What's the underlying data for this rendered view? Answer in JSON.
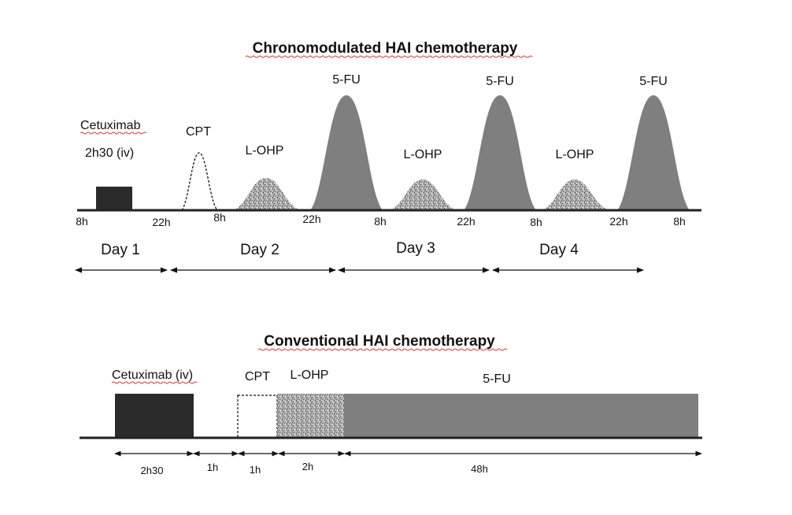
{
  "chrono": {
    "title": "Chronomodulated HAI chemotherapy",
    "cetuximab_label": "Cetuximab",
    "cetuximab_dose": "2h30 (iv)",
    "cpt_label": "CPT",
    "lohp_labels": [
      "L-OHP",
      "L-OHP",
      "L-OHP"
    ],
    "fu_labels": [
      "5-FU",
      "5-FU",
      "5-FU"
    ],
    "time_ticks": [
      "8h",
      "22h",
      "8h",
      "22h",
      "8h",
      "22h",
      "8h",
      "22h",
      "8h"
    ],
    "days": [
      "Day 1",
      "Day 2",
      "Day 3",
      "Day 4"
    ]
  },
  "conventional": {
    "title": "Conventional HAI chemotherapy",
    "cetuximab_label": "Cetuximab (iv)",
    "cpt_label": "CPT",
    "lohp_label": "L-OHP",
    "fu_label": "5-FU",
    "durations": [
      "2h30",
      "1h",
      "1h",
      "2h",
      "48h"
    ]
  },
  "colors": {
    "cetuximab": "#2b2b2b",
    "fu": "#7f7f7f",
    "lohp": "#a8a8a8",
    "axis": "#222222",
    "spellcheck": "#d23b3b"
  }
}
